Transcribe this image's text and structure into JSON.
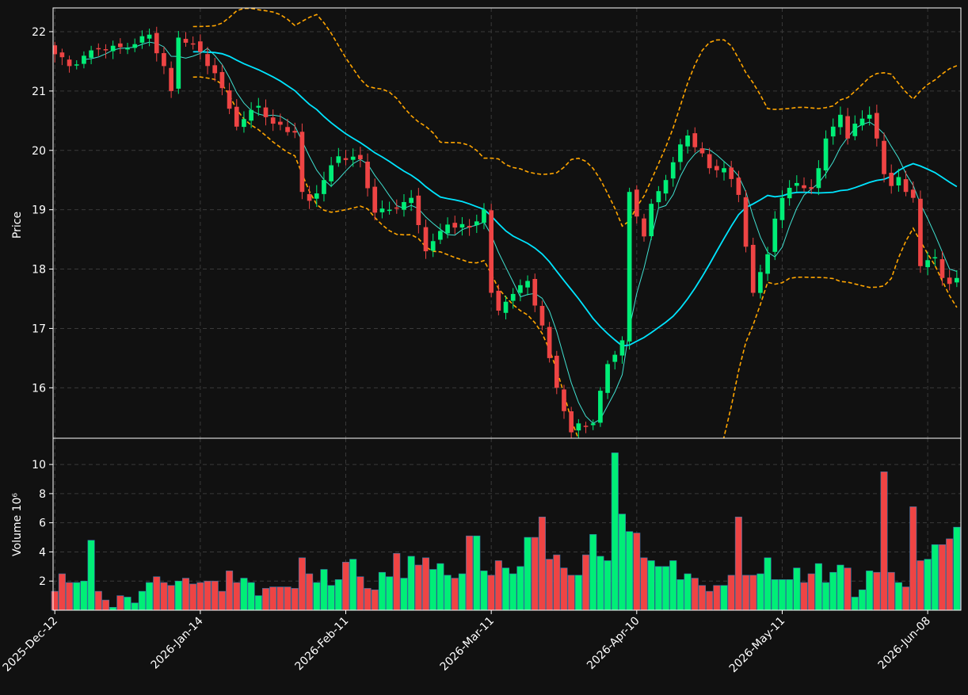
{
  "colors": {
    "background": "#111111",
    "up": "#00ee77",
    "down": "#ee4444",
    "sma_fast": "#40e0d0",
    "sma_slow": "#00e5ff",
    "bollinger": "#ffa500",
    "grid": "#3a3a3a",
    "axis": "#ffffff"
  },
  "chart_data": [
    {
      "type": "candlestick",
      "ylabel": "Price",
      "ylim": [
        15.15,
        22.4
      ],
      "yticks": [
        16,
        17,
        18,
        19,
        20,
        21,
        22
      ],
      "grid": true,
      "x_start_date": "2025-12-12",
      "num_bars": 125,
      "xtick_labels": [
        "2025-Dec-12",
        "2026-Jan-14",
        "2026-Feb-11",
        "2026-Mar-11",
        "2026-Apr-10",
        "2026-May-11",
        "2026-Jun-08"
      ],
      "xtick_index": [
        0,
        20,
        40,
        60,
        80,
        100,
        120
      ],
      "close_anchors": [
        [
          0,
          21.62
        ],
        [
          2,
          21.42
        ],
        [
          6,
          21.72
        ],
        [
          10,
          21.72
        ],
        [
          13,
          21.95
        ],
        [
          15,
          21.42
        ],
        [
          16,
          21.0
        ],
        [
          17,
          21.9
        ],
        [
          19,
          21.8
        ],
        [
          22,
          21.3
        ],
        [
          25,
          20.4
        ],
        [
          28,
          20.75
        ],
        [
          30,
          20.45
        ],
        [
          33,
          20.3
        ],
        [
          34,
          19.3
        ],
        [
          35,
          19.15
        ],
        [
          37,
          19.5
        ],
        [
          39,
          19.9
        ],
        [
          42,
          19.85
        ],
        [
          44,
          18.95
        ],
        [
          46,
          19.0
        ],
        [
          49,
          19.2
        ],
        [
          51,
          18.3
        ],
        [
          54,
          18.75
        ],
        [
          57,
          18.7
        ],
        [
          59,
          19.0
        ],
        [
          60,
          17.6
        ],
        [
          61,
          17.3
        ],
        [
          62,
          17.45
        ],
        [
          65,
          17.8
        ],
        [
          67,
          17.05
        ],
        [
          68,
          16.5
        ],
        [
          69,
          16.0
        ],
        [
          71,
          15.25
        ],
        [
          72,
          15.4
        ],
        [
          74,
          15.4
        ],
        [
          75,
          15.95
        ],
        [
          76,
          16.4
        ],
        [
          78,
          16.8
        ],
        [
          79,
          19.3
        ],
        [
          81,
          18.55
        ],
        [
          82,
          19.1
        ],
        [
          84,
          19.5
        ],
        [
          86,
          20.1
        ],
        [
          87,
          20.25
        ],
        [
          89,
          19.95
        ],
        [
          90,
          19.7
        ],
        [
          92,
          19.7
        ],
        [
          94,
          19.25
        ],
        [
          96,
          17.6
        ],
        [
          97,
          17.95
        ],
        [
          98,
          18.25
        ],
        [
          99,
          18.85
        ],
        [
          100,
          19.2
        ],
        [
          102,
          19.45
        ],
        [
          104,
          19.35
        ],
        [
          105,
          19.7
        ],
        [
          106,
          20.2
        ],
        [
          107,
          20.4
        ],
        [
          108,
          20.6
        ],
        [
          109,
          20.2
        ],
        [
          110,
          20.45
        ],
        [
          112,
          20.6
        ],
        [
          113,
          20.2
        ],
        [
          114,
          19.6
        ],
        [
          115,
          19.4
        ],
        [
          116,
          19.55
        ],
        [
          117,
          19.3
        ],
        [
          118,
          19.2
        ],
        [
          119,
          18.05
        ],
        [
          120,
          18.15
        ],
        [
          121,
          18.2
        ],
        [
          122,
          17.85
        ],
        [
          123,
          17.75
        ],
        [
          124,
          17.85
        ]
      ],
      "series": [
        {
          "name": "",
          "kind": "sma",
          "window": 5
        },
        {
          "name": "",
          "kind": "sma",
          "window": 20
        },
        {
          "name": "",
          "kind": "bollinger",
          "window": 20,
          "k": 2
        }
      ]
    },
    {
      "type": "bar",
      "ylabel": "Volume  10⁶",
      "ylim": [
        0,
        11.8
      ],
      "yticks": [
        2,
        4,
        6,
        8,
        10
      ],
      "grid": true,
      "volume_millions": [
        1.3,
        2.5,
        1.9,
        1.9,
        2.0,
        4.8,
        1.3,
        0.7,
        0.2,
        1.0,
        0.9,
        0.5,
        1.3,
        1.9,
        2.3,
        1.9,
        1.7,
        2.0,
        2.2,
        1.8,
        1.9,
        2.0,
        2.0,
        1.3,
        2.7,
        1.9,
        2.2,
        1.9,
        1.0,
        1.5,
        1.6,
        1.6,
        1.6,
        1.5,
        3.6,
        2.5,
        1.9,
        2.8,
        1.7,
        2.1,
        3.3,
        3.5,
        2.3,
        1.5,
        1.4,
        2.6,
        2.3,
        3.9,
        2.2,
        3.7,
        3.1,
        3.6,
        2.8,
        3.2,
        2.4,
        2.2,
        2.5,
        5.1,
        5.1,
        2.7,
        2.4,
        3.4,
        2.9,
        2.5,
        3.0,
        5.0,
        5.0,
        6.4,
        3.5,
        3.8,
        2.9,
        2.4,
        2.4,
        3.8,
        5.2,
        3.7,
        3.4,
        10.8,
        6.6,
        5.4,
        5.3,
        3.6,
        3.4,
        3.0,
        3.0,
        3.4,
        2.1,
        2.5,
        2.2,
        1.7,
        1.3,
        1.7,
        1.7,
        2.4,
        6.4,
        2.4,
        2.4,
        2.5,
        3.6,
        2.1,
        2.1,
        2.1,
        2.9,
        1.9,
        2.5,
        3.2,
        1.9,
        2.6,
        3.1,
        2.9,
        0.9,
        1.4,
        2.7,
        2.6,
        9.5,
        2.6,
        1.9,
        1.6,
        7.1,
        3.4,
        3.5,
        4.5,
        4.5,
        4.9,
        5.7
      ]
    }
  ]
}
